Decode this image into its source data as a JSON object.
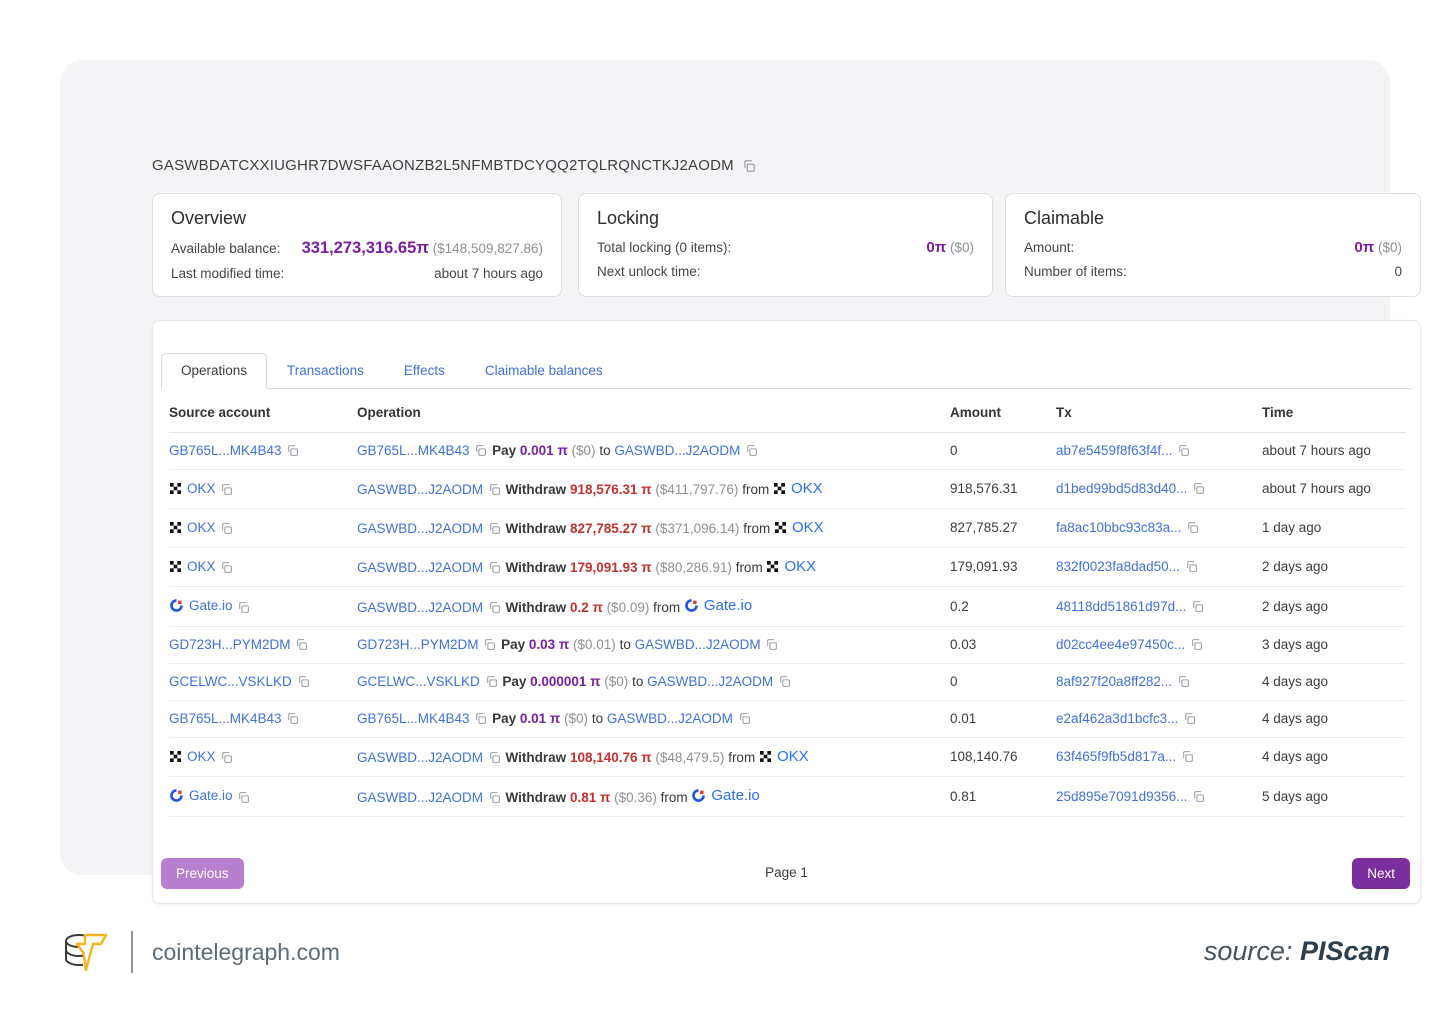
{
  "address": {
    "value": "GASWBDATCXXIUGHR7DWSFAAONZB2L5NFMBTDCYQQ2TQLRQNCTKJ2AODM"
  },
  "cards": {
    "overview": {
      "title": "Overview",
      "balance_label": "Available balance:",
      "balance_value": "331,273,316.65π",
      "balance_usd": "($148,509,827.86)",
      "modified_label": "Last modified time:",
      "modified_value": "about 7 hours ago"
    },
    "locking": {
      "title": "Locking",
      "total_label": "Total locking (0 items):",
      "total_value": "0π",
      "total_usd": "($0)",
      "unlock_label": "Next unlock time:",
      "unlock_value": ""
    },
    "claimable": {
      "title": "Claimable",
      "amount_label": "Amount:",
      "amount_value": "0π",
      "amount_usd": "($0)",
      "items_label": "Number of items:",
      "items_value": "0"
    }
  },
  "tabs": [
    {
      "label": "Operations",
      "active": true
    },
    {
      "label": "Transactions",
      "active": false
    },
    {
      "label": "Effects",
      "active": false
    },
    {
      "label": "Claimable balances",
      "active": false
    }
  ],
  "table": {
    "headers": [
      "Source account",
      "Operation",
      "Amount",
      "Tx",
      "Time"
    ],
    "rows": [
      {
        "source": {
          "icon": null,
          "label": "GB765L...MK4B43"
        },
        "operation": [
          {
            "t": "acct",
            "v": "GB765L...MK4B43"
          },
          {
            "t": "copy"
          },
          {
            "t": "bold",
            "v": "Pay"
          },
          {
            "t": "amtP",
            "v": "0.001 π"
          },
          {
            "t": "usd",
            "v": "($0)"
          },
          {
            "t": "plain",
            "v": "to"
          },
          {
            "t": "acct",
            "v": "GASWBD...J2AODM"
          },
          {
            "t": "copy"
          }
        ],
        "amount": "0",
        "tx": "ab7e5459f8f63f4f...",
        "time": "about 7 hours ago"
      },
      {
        "source": {
          "icon": "okx",
          "label": "OKX"
        },
        "operation": [
          {
            "t": "acct",
            "v": "GASWBD...J2AODM"
          },
          {
            "t": "copy"
          },
          {
            "t": "bold",
            "v": "Withdraw"
          },
          {
            "t": "amtR",
            "v": "918,576.31 π"
          },
          {
            "t": "usd",
            "v": "($411,797.76)"
          },
          {
            "t": "plain",
            "v": "from"
          },
          {
            "t": "okx",
            "v": "OKX"
          }
        ],
        "amount": "918,576.31",
        "tx": "d1bed99bd5d83d40...",
        "time": "about 7 hours ago"
      },
      {
        "source": {
          "icon": "okx",
          "label": "OKX"
        },
        "operation": [
          {
            "t": "acct",
            "v": "GASWBD...J2AODM"
          },
          {
            "t": "copy"
          },
          {
            "t": "bold",
            "v": "Withdraw"
          },
          {
            "t": "amtR",
            "v": "827,785.27 π"
          },
          {
            "t": "usd",
            "v": "($371,096.14)"
          },
          {
            "t": "plain",
            "v": "from"
          },
          {
            "t": "okx",
            "v": "OKX"
          }
        ],
        "amount": "827,785.27",
        "tx": "fa8ac10bbc93c83a...",
        "time": "1 day ago"
      },
      {
        "source": {
          "icon": "okx",
          "label": "OKX"
        },
        "operation": [
          {
            "t": "acct",
            "v": "GASWBD...J2AODM"
          },
          {
            "t": "copy"
          },
          {
            "t": "bold",
            "v": "Withdraw"
          },
          {
            "t": "amtR",
            "v": "179,091.93 π"
          },
          {
            "t": "usd",
            "v": "($80,286.91)"
          },
          {
            "t": "plain",
            "v": "from"
          },
          {
            "t": "okx",
            "v": "OKX"
          }
        ],
        "amount": "179,091.93",
        "tx": "832f0023fa8dad50...",
        "time": "2 days ago"
      },
      {
        "source": {
          "icon": "gate",
          "label": "Gate.io"
        },
        "operation": [
          {
            "t": "acct",
            "v": "GASWBD...J2AODM"
          },
          {
            "t": "copy"
          },
          {
            "t": "bold",
            "v": "Withdraw"
          },
          {
            "t": "amtR",
            "v": "0.2 π"
          },
          {
            "t": "usd",
            "v": "($0.09)"
          },
          {
            "t": "plain",
            "v": "from"
          },
          {
            "t": "gate",
            "v": "Gate.io"
          }
        ],
        "amount": "0.2",
        "tx": "48118dd51861d97d...",
        "time": "2 days ago"
      },
      {
        "source": {
          "icon": null,
          "label": "GD723H...PYM2DM"
        },
        "operation": [
          {
            "t": "acct",
            "v": "GD723H...PYM2DM"
          },
          {
            "t": "copy"
          },
          {
            "t": "bold",
            "v": "Pay"
          },
          {
            "t": "amtP",
            "v": "0.03 π"
          },
          {
            "t": "usd",
            "v": "($0.01)"
          },
          {
            "t": "plain",
            "v": "to"
          },
          {
            "t": "acct",
            "v": "GASWBD...J2AODM"
          },
          {
            "t": "copy"
          }
        ],
        "amount": "0.03",
        "tx": "d02cc4ee4e97450c...",
        "time": "3 days ago"
      },
      {
        "source": {
          "icon": null,
          "label": "GCELWC...VSKLKD"
        },
        "operation": [
          {
            "t": "acct",
            "v": "GCELWC...VSKLKD"
          },
          {
            "t": "copy"
          },
          {
            "t": "bold",
            "v": "Pay"
          },
          {
            "t": "amtP",
            "v": "0.000001 π"
          },
          {
            "t": "usd",
            "v": "($0)"
          },
          {
            "t": "plain",
            "v": "to"
          },
          {
            "t": "acct",
            "v": "GASWBD...J2AODM"
          },
          {
            "t": "copy"
          }
        ],
        "amount": "0",
        "tx": "8af927f20a8ff282...",
        "time": "4 days ago"
      },
      {
        "source": {
          "icon": null,
          "label": "GB765L...MK4B43"
        },
        "operation": [
          {
            "t": "acct",
            "v": "GB765L...MK4B43"
          },
          {
            "t": "copy"
          },
          {
            "t": "bold",
            "v": "Pay"
          },
          {
            "t": "amtP",
            "v": "0.01 π"
          },
          {
            "t": "usd",
            "v": "($0)"
          },
          {
            "t": "plain",
            "v": "to"
          },
          {
            "t": "acct",
            "v": "GASWBD...J2AODM"
          },
          {
            "t": "copy"
          }
        ],
        "amount": "0.01",
        "tx": "e2af462a3d1bcfc3...",
        "time": "4 days ago"
      },
      {
        "source": {
          "icon": "okx",
          "label": "OKX"
        },
        "operation": [
          {
            "t": "acct",
            "v": "GASWBD...J2AODM"
          },
          {
            "t": "copy"
          },
          {
            "t": "bold",
            "v": "Withdraw"
          },
          {
            "t": "amtR",
            "v": "108,140.76 π"
          },
          {
            "t": "usd",
            "v": "($48,479.5)"
          },
          {
            "t": "plain",
            "v": "from"
          },
          {
            "t": "okx",
            "v": "OKX"
          }
        ],
        "amount": "108,140.76",
        "tx": "63f465f9fb5d817a...",
        "time": "4 days ago"
      },
      {
        "source": {
          "icon": "gate",
          "label": "Gate.io"
        },
        "operation": [
          {
            "t": "acct",
            "v": "GASWBD...J2AODM"
          },
          {
            "t": "copy"
          },
          {
            "t": "bold",
            "v": "Withdraw"
          },
          {
            "t": "amtR",
            "v": "0.81 π"
          },
          {
            "t": "usd",
            "v": "($0.36)"
          },
          {
            "t": "plain",
            "v": "from"
          },
          {
            "t": "gate",
            "v": "Gate.io"
          }
        ],
        "amount": "0.81",
        "tx": "25d895e7091d9356...",
        "time": "5 days ago"
      }
    ]
  },
  "pagination": {
    "previous": "Previous",
    "page": "Page 1",
    "next": "Next"
  },
  "footer": {
    "site": "cointelegraph.com",
    "source_label": "source:",
    "source_value": "PIScan"
  },
  "colors": {
    "panel_bg": "#f4f4f6",
    "accent_purple": "#7b1fa2",
    "red": "#c53030",
    "link_blue": "#4170dd",
    "exchange_blue": "#2a70f0",
    "btn_previous": "#b77fd0",
    "btn_next": "#7b2f9d",
    "bolt_yellow": "#f2b51d"
  }
}
